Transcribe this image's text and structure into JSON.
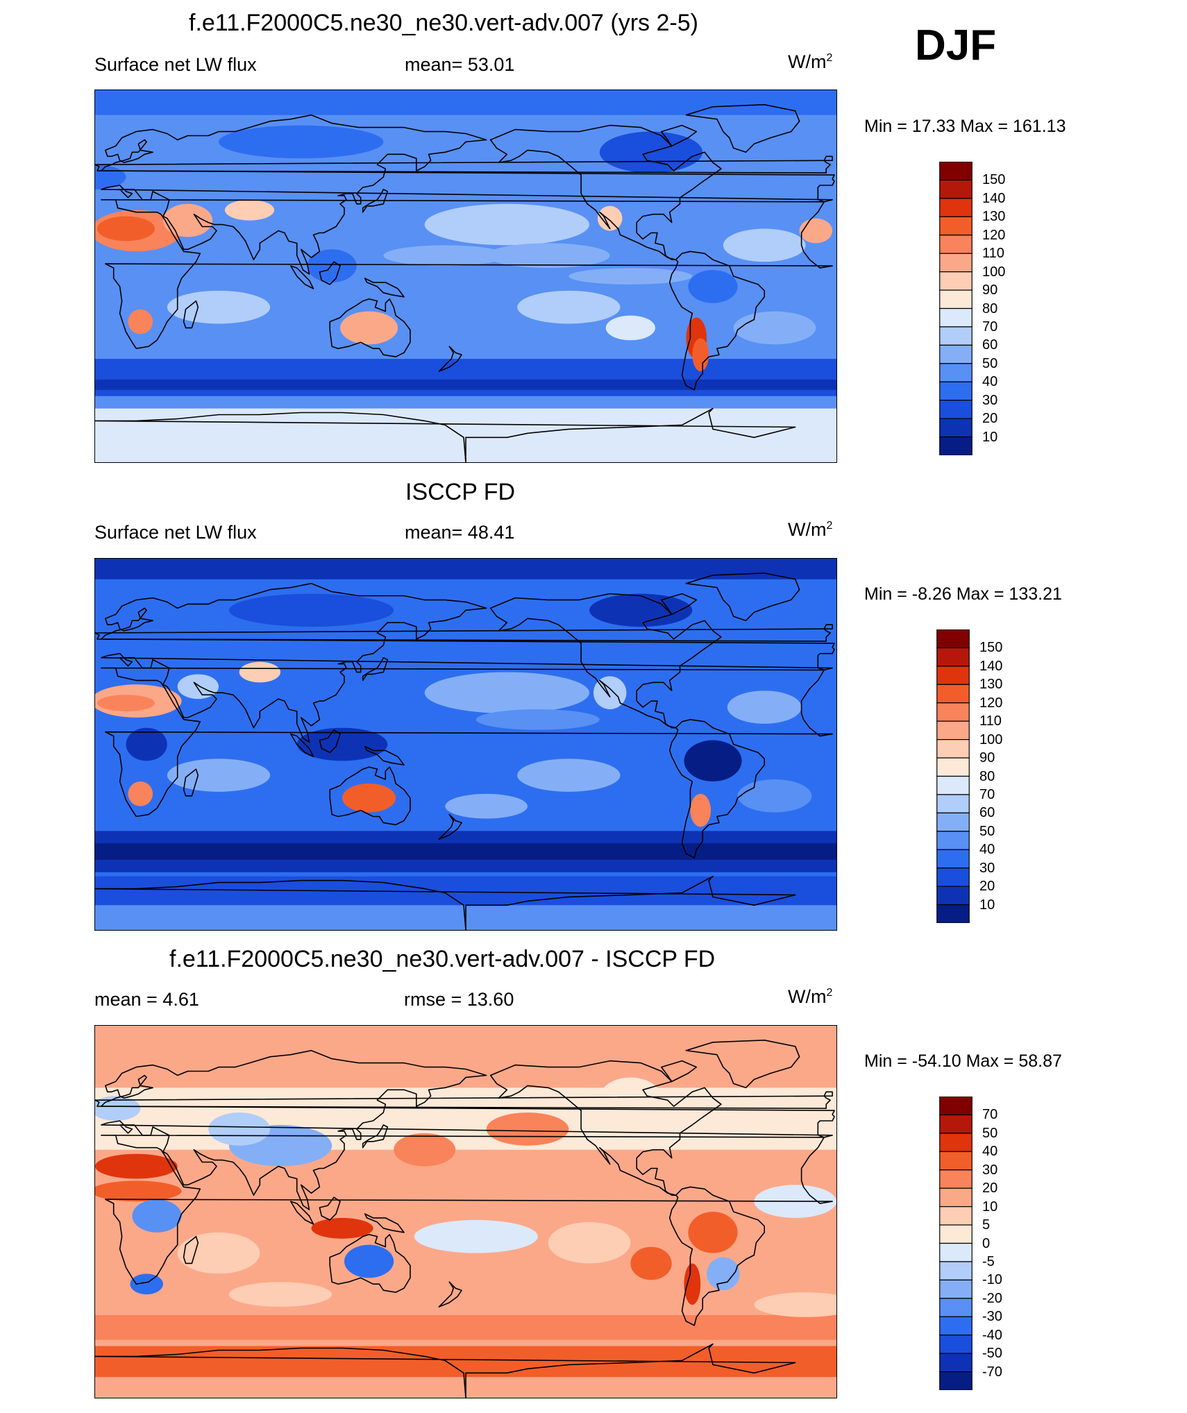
{
  "figure": {
    "season": "DJF",
    "units_base": "W/m",
    "units_exp": "2"
  },
  "panels": [
    {
      "title": "f.e11.F2000C5.ne30_ne30.vert-adv.007 (yrs 2-5)",
      "left_label": "Surface net LW flux",
      "center_label": "mean=  53.01",
      "minmax": "Min =  17.33 Max = 161.13",
      "colorbar_levels": [
        "150",
        "140",
        "130",
        "120",
        "110",
        "100",
        "90",
        "80",
        "70",
        "60",
        "50",
        "40",
        "30",
        "20",
        "10"
      ],
      "colorbar_colors": [
        "#800000",
        "#b5170b",
        "#e0340c",
        "#f25e2a",
        "#f9835a",
        "#fba889",
        "#fdcdb4",
        "#fce9d8",
        "#dbe9fb",
        "#b1cdfa",
        "#84aff7",
        "#5890f4",
        "#2d6ef0",
        "#1a4edc",
        "#0d33b4",
        "#061d86"
      ],
      "mean_color": "#4a83f2"
    },
    {
      "title": "ISCCP FD",
      "left_label": "Surface net LW flux",
      "center_label": "mean=  48.41",
      "minmax": "Min =  -8.26 Max = 133.21",
      "colorbar_levels": [
        "150",
        "140",
        "130",
        "120",
        "110",
        "100",
        "90",
        "80",
        "70",
        "60",
        "50",
        "40",
        "30",
        "20",
        "10"
      ],
      "colorbar_colors": [
        "#800000",
        "#b5170b",
        "#e0340c",
        "#f25e2a",
        "#f9835a",
        "#fba889",
        "#fdcdb4",
        "#fce9d8",
        "#dbe9fb",
        "#b1cdfa",
        "#84aff7",
        "#5890f4",
        "#2d6ef0",
        "#1a4edc",
        "#0d33b4",
        "#061d86"
      ],
      "mean_color": "#3a72ef"
    },
    {
      "title": "f.e11.F2000C5.ne30_ne30.vert-adv.007 - ISCCP FD",
      "left_label": "mean =   4.61",
      "center_label": "rmse =  13.60",
      "minmax": "Min = -54.10 Max =  58.87",
      "colorbar_levels": [
        "70",
        "50",
        "40",
        "30",
        "20",
        "10",
        "5",
        "0",
        "-5",
        "-10",
        "-20",
        "-30",
        "-40",
        "-50",
        "-70"
      ],
      "colorbar_colors": [
        "#800000",
        "#b5170b",
        "#e0340c",
        "#f25e2a",
        "#f9835a",
        "#fba889",
        "#fdcdb4",
        "#fce9d8",
        "#dbe9fb",
        "#b1cdfa",
        "#84aff7",
        "#5890f4",
        "#2d6ef0",
        "#1a4edc",
        "#0d33b4",
        "#061d86"
      ],
      "mean_color": "#f6b9a0"
    }
  ],
  "chart_data": [
    {
      "type": "heatmap",
      "title": "f.e11.F2000C5.ne30_ne30.vert-adv.007 (yrs 2-5)",
      "variable": "Surface net LW flux",
      "units": "W/m2",
      "season": "DJF",
      "mean": 53.01,
      "min": 17.33,
      "max": 161.13,
      "contour_levels": [
        10,
        20,
        30,
        40,
        50,
        60,
        70,
        80,
        90,
        100,
        110,
        120,
        130,
        140,
        150
      ]
    },
    {
      "type": "heatmap",
      "title": "ISCCP FD",
      "variable": "Surface net LW flux",
      "units": "W/m2",
      "season": "DJF",
      "mean": 48.41,
      "min": -8.26,
      "max": 133.21,
      "contour_levels": [
        10,
        20,
        30,
        40,
        50,
        60,
        70,
        80,
        90,
        100,
        110,
        120,
        130,
        140,
        150
      ]
    },
    {
      "type": "heatmap",
      "title": "f.e11.F2000C5.ne30_ne30.vert-adv.007 - ISCCP FD",
      "units": "W/m2",
      "season": "DJF",
      "mean": 4.61,
      "rmse": 13.6,
      "min": -54.1,
      "max": 58.87,
      "contour_levels": [
        -70,
        -50,
        -40,
        -30,
        -20,
        -10,
        -5,
        0,
        5,
        10,
        20,
        30,
        40,
        50,
        70
      ]
    }
  ]
}
